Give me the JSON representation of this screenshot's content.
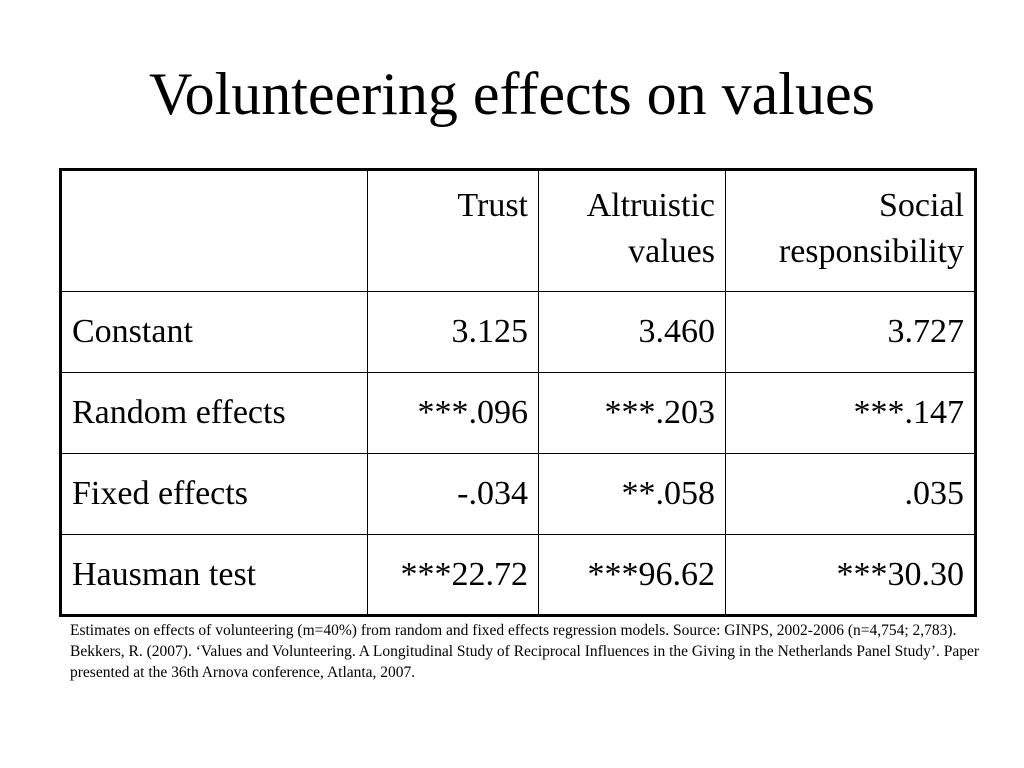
{
  "slide": {
    "title": "Volunteering effects on values"
  },
  "table": {
    "columns": [
      {
        "lines": [
          ""
        ]
      },
      {
        "lines": [
          "Trust"
        ]
      },
      {
        "lines": [
          "Altruistic",
          "values"
        ]
      },
      {
        "lines": [
          "Social",
          "responsibility"
        ]
      }
    ],
    "rows": [
      {
        "label": "Constant",
        "values": [
          "3.125",
          "3.460",
          "3.727"
        ]
      },
      {
        "label": "Random effects",
        "values": [
          "***.096",
          "***.203",
          "***.147"
        ]
      },
      {
        "label": "Fixed effects",
        "values": [
          "-.034",
          "**.058",
          ".035"
        ]
      },
      {
        "label": "Hausman test",
        "values": [
          "***22.72",
          "***96.62",
          "***30.30"
        ]
      }
    ]
  },
  "footnote": {
    "text": "Estimates on effects of volunteering (m=40%) from random and fixed effects regression models. Source: GINPS, 2002-2006 (n=4,754; 2,783). Bekkers, R. (2007). ‘Values and Volunteering. A Longitudinal Study of Reciprocal Influences in the Giving in the Netherlands Panel Study’. Paper presented at the 36th Arnova conference, Atlanta, 2007."
  }
}
